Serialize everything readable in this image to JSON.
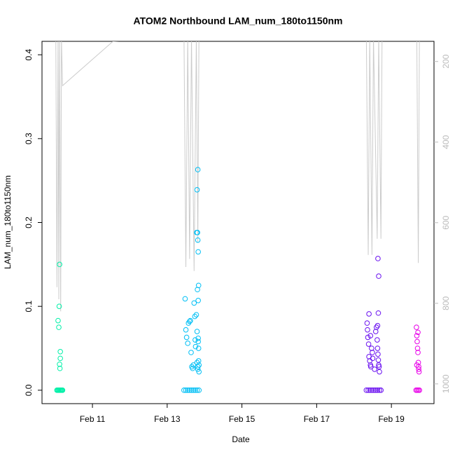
{
  "chart_data": {
    "type": "scatter",
    "title": "ATOM2 Northbound LAM_num_180to1150nm",
    "xlabel": "Date",
    "ylabel": "LAM_num_180to1150nm",
    "xlim": [
      9.65,
      20.14
    ],
    "xticks": [
      {
        "value": 11,
        "label": "Feb 11"
      },
      {
        "value": 13,
        "label": "Feb 13"
      },
      {
        "value": 15,
        "label": "Feb 15"
      },
      {
        "value": 17,
        "label": "Feb 17"
      },
      {
        "value": 19,
        "label": "Feb 19"
      }
    ],
    "ylim": [
      -0.016,
      0.416
    ],
    "yticks": [
      {
        "value": 0,
        "label": "0.0"
      },
      0.1,
      0.2,
      0.3,
      0.4
    ],
    "y2lim": [
      1049,
      150
    ],
    "y2ticks": [
      200,
      400,
      600,
      800,
      1000
    ],
    "series": [
      {
        "color": "#00f0a8",
        "x": [
          10.05,
          10.07,
          10.09,
          10.11,
          10.13,
          10.15,
          10.17,
          10.19,
          10.2,
          10.08,
          10.1,
          10.12,
          10.13,
          10.14,
          10.14,
          10.12,
          10.11
        ],
        "values": [
          0,
          0,
          0,
          0,
          0,
          0,
          0,
          0,
          0,
          0.083,
          0.075,
          0.031,
          0.026,
          0.046,
          0.038,
          0.15,
          0.1
        ]
      },
      {
        "color": "#00bff5",
        "x": [
          13.45,
          13.5,
          13.55,
          13.6,
          13.65,
          13.7,
          13.75,
          13.8,
          13.85,
          13.48,
          13.5,
          13.52,
          13.55,
          13.57,
          13.6,
          13.62,
          13.64,
          13.66,
          13.68,
          13.7,
          13.72,
          13.74,
          13.75,
          13.76,
          13.78,
          13.8,
          13.8,
          13.82,
          13.82,
          13.83,
          13.83,
          13.84,
          13.84,
          13.85,
          13.85,
          13.79,
          13.81,
          13.82,
          13.83,
          13.84,
          13.81,
          13.83,
          13.8,
          13.82
        ],
        "values": [
          0,
          0,
          0,
          0,
          0,
          0,
          0,
          0,
          0,
          0.109,
          0.072,
          0.063,
          0.056,
          0.08,
          0.082,
          0.083,
          0.045,
          0.028,
          0.026,
          0.03,
          0.104,
          0.088,
          0.06,
          0.052,
          0.09,
          0.07,
          0.033,
          0.028,
          0.025,
          0.062,
          0.058,
          0.05,
          0.035,
          0.03,
          0.022,
          0.188,
          0.188,
          0.179,
          0.165,
          0.125,
          0.12,
          0.107,
          0.239,
          0.263
        ]
      },
      {
        "color": "#6a10f0",
        "x": [
          18.33,
          18.38,
          18.43,
          18.48,
          18.53,
          18.58,
          18.63,
          18.68,
          18.72,
          18.35,
          18.37,
          18.39,
          18.4,
          18.42,
          18.44,
          18.45,
          18.47,
          18.49,
          18.5,
          18.55,
          18.58,
          18.6,
          18.62,
          18.63,
          18.64,
          18.65,
          18.66,
          18.67,
          18.68,
          18.36,
          18.4,
          18.44,
          18.63,
          18.65,
          18.66,
          18.64
        ],
        "values": [
          0,
          0,
          0,
          0,
          0,
          0,
          0,
          0,
          0,
          0.08,
          0.063,
          0.055,
          0.04,
          0.035,
          0.03,
          0.028,
          0.05,
          0.045,
          0.038,
          0.025,
          0.07,
          0.075,
          0.06,
          0.05,
          0.043,
          0.036,
          0.03,
          0.028,
          0.022,
          0.072,
          0.091,
          0.065,
          0.077,
          0.092,
          0.136,
          0.157
        ]
      },
      {
        "color": "#e800e8",
        "x": [
          19.66,
          19.69,
          19.72,
          19.75,
          19.67,
          19.68,
          19.69,
          19.7,
          19.71,
          19.72,
          19.73,
          19.74,
          19.68,
          19.71,
          19.73
        ],
        "values": [
          0,
          0,
          0,
          0,
          0.075,
          0.065,
          0.058,
          0.05,
          0.045,
          0.033,
          0.028,
          0.022,
          0.03,
          0.069,
          0.025
        ]
      },
      {
        "color": "#cccccc",
        "axis": "y2",
        "x": [
          10.02,
          10.05,
          10.08,
          10.1,
          10.12,
          10.15,
          10.17,
          10.2,
          11.55,
          13.45,
          13.5,
          13.55,
          13.6,
          13.65,
          13.72,
          13.78,
          13.82,
          13.85,
          18.33,
          18.38,
          18.42,
          18.48,
          18.52,
          18.62,
          18.66,
          18.72,
          18.75,
          19.68,
          19.72,
          19.75
        ],
        "values": [
          140,
          760,
          140,
          790,
          140,
          820,
          140,
          260,
          150,
          140,
          710,
          140,
          690,
          140,
          720,
          140,
          650,
          140,
          140,
          680,
          140,
          680,
          140,
          640,
          140,
          640,
          140,
          140,
          700,
          140
        ]
      }
    ]
  }
}
